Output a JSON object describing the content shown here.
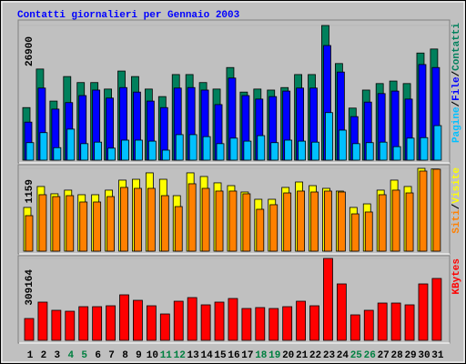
{
  "chart_data": [
    {
      "type": "bar",
      "title": "Contatti giornalieri per Gennaio 2003",
      "ylim": [
        0,
        26900
      ],
      "yticks": [
        26900
      ],
      "legend_separator": "/",
      "series": [
        {
          "name": "Pagine",
          "color": "#00C0FF",
          "values": [
            3500,
            5500,
            2500,
            6200,
            3300,
            3600,
            2400,
            4000,
            4000,
            3800,
            2000,
            5100,
            5100,
            4700,
            3300,
            4400,
            3800,
            4900,
            3500,
            4000,
            3800,
            3600,
            9500,
            6000,
            3300,
            3500,
            3600,
            2700,
            4400,
            4500,
            6900
          ]
        },
        {
          "name": "File",
          "color": "#0000FF",
          "values": [
            7600,
            14400,
            10200,
            11500,
            12900,
            14000,
            12400,
            14500,
            13600,
            11800,
            10500,
            14400,
            14500,
            14000,
            11100,
            16400,
            12900,
            12200,
            12700,
            13800,
            14400,
            14400,
            22900,
            17600,
            8700,
            11600,
            13300,
            13800,
            12200,
            19100,
            18500
          ]
        },
        {
          "name": "Contatti",
          "color": "#00805C",
          "values": [
            10500,
            18200,
            11800,
            16700,
            15500,
            15500,
            14200,
            17800,
            16700,
            14200,
            12700,
            17100,
            17100,
            15500,
            14200,
            18500,
            13600,
            14200,
            14000,
            14500,
            17100,
            17100,
            26900,
            19300,
            10400,
            14000,
            15300,
            15800,
            15300,
            21400,
            22200
          ]
        }
      ]
    },
    {
      "type": "bar",
      "ylim": [
        0,
        1159
      ],
      "yticks": [
        1159
      ],
      "legend_separator": "/",
      "series": [
        {
          "name": "Siti",
          "color": "#FF8000",
          "values": [
            497,
            790,
            764,
            777,
            688,
            688,
            764,
            892,
            879,
            879,
            777,
            624,
            943,
            879,
            841,
            841,
            803,
            586,
            650,
            815,
            841,
            828,
            841,
            828,
            522,
            548,
            790,
            854,
            815,
            1121,
            1147
          ]
        },
        {
          "name": "Visite",
          "color": "#FFFF00",
          "values": [
            612,
            905,
            803,
            854,
            790,
            790,
            854,
            994,
            1006,
            1096,
            1006,
            777,
            1096,
            1045,
            956,
            917,
            828,
            726,
            726,
            892,
            968,
            917,
            879,
            841,
            612,
            662,
            854,
            994,
            905,
            1159,
            1150
          ]
        }
      ]
    },
    {
      "type": "bar",
      "ylim": [
        0,
        309164
      ],
      "yticks": [
        309164
      ],
      "categories": [
        "1",
        "2",
        "3",
        "4",
        "5",
        "6",
        "7",
        "8",
        "9",
        "10",
        "11",
        "12",
        "13",
        "14",
        "15",
        "16",
        "17",
        "18",
        "19",
        "20",
        "21",
        "22",
        "23",
        "24",
        "25",
        "26",
        "27",
        "28",
        "29",
        "30",
        "31"
      ],
      "label_colors": [
        "#000",
        "#000",
        "#000",
        "#008040",
        "#008040",
        "#000",
        "#000",
        "#000",
        "#000",
        "#000",
        "#008040",
        "#008040",
        "#000",
        "#000",
        "#000",
        "#000",
        "#000",
        "#008040",
        "#008040",
        "#000",
        "#000",
        "#000",
        "#000",
        "#000",
        "#008040",
        "#008040",
        "#000",
        "#000",
        "#000",
        "#000",
        "#000"
      ],
      "series": [
        {
          "name": "KBytes",
          "color": "#FF0000",
          "values": [
            82400,
            144300,
            113400,
            109900,
            127100,
            127100,
            130500,
            171800,
            151100,
            130500,
            99600,
            147700,
            161400,
            134000,
            144300,
            158000,
            120200,
            123700,
            120200,
            127100,
            147700,
            130500,
            309164,
            213000,
            96200,
            113400,
            140800,
            140800,
            134000,
            213000,
            233600
          ]
        }
      ]
    }
  ]
}
